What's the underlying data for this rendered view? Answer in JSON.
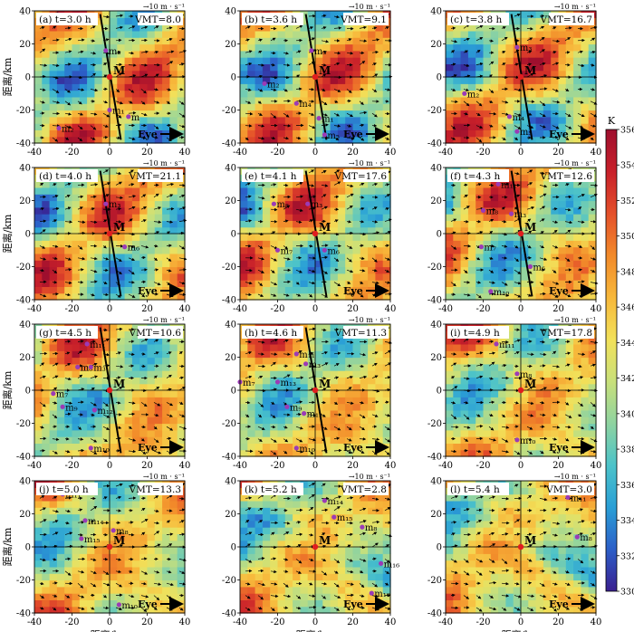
{
  "figure": {
    "xlabel": "距离/km",
    "ylabel": "距离/km",
    "vector_scale_label": "→10 m · s⁻¹",
    "eye_label": "Eye",
    "center_label": "M",
    "colorbar": {
      "unit": "K",
      "min": 330,
      "max": 356,
      "ticks": [
        "330",
        "332",
        "334",
        "336",
        "338",
        "340",
        "342",
        "344",
        "346",
        "348",
        "350",
        "352",
        "354",
        "356"
      ]
    },
    "colors": {
      "cmap": [
        "#3a1f8f",
        "#2c5fc8",
        "#2a9fd6",
        "#4cc3c9",
        "#8fd3a0",
        "#c9e07a",
        "#f2e15a",
        "#f7b83b",
        "#f28a2a",
        "#e4502a",
        "#c8202a",
        "#9e0f2e"
      ],
      "point": "#9b3bb6",
      "center": "#e01e1e"
    }
  },
  "chart_data": {
    "type": "heatmap",
    "description_axes": {
      "xlim": [
        -40,
        40
      ],
      "ylim": [
        -40,
        40
      ],
      "xticks": [
        -40,
        -20,
        0,
        20,
        40
      ],
      "yticks": [
        -40,
        -20,
        0,
        20,
        40
      ]
    },
    "panels": [
      {
        "tag": "(a)",
        "t": "t=3.0 h",
        "vmt": "VMT=8.0",
        "points": [
          {
            "name": "m₃",
            "x": -2,
            "y": 16
          },
          {
            "name": "m₁",
            "x": 0,
            "y": -20
          },
          {
            "name": "m₂",
            "x": -27,
            "y": -31
          },
          {
            "name": "m",
            "x": 10,
            "y": -24
          }
        ]
      },
      {
        "tag": "(b)",
        "t": "t=3.6 h",
        "vmt": "VMT=9.1",
        "points": [
          {
            "name": "m₃",
            "x": -2,
            "y": 16
          },
          {
            "name": "m₂",
            "x": -27,
            "y": -4
          },
          {
            "name": "m₄",
            "x": -10,
            "y": -16
          },
          {
            "name": "m₁",
            "x": 2,
            "y": -25
          },
          {
            "name": "m₅",
            "x": 5,
            "y": -35
          }
        ]
      },
      {
        "tag": "(c)",
        "t": "t=3.8 h",
        "vmt": "VMT=16.7",
        "points": [
          {
            "name": "m₃",
            "x": -2,
            "y": 18
          },
          {
            "name": "m₂",
            "x": -30,
            "y": -10
          },
          {
            "name": "m₄",
            "x": -6,
            "y": -24
          },
          {
            "name": "m₅",
            "x": -2,
            "y": -33
          }
        ]
      },
      {
        "tag": "(d)",
        "t": "t=4.0 h",
        "vmt": "VMT=21.1",
        "points": [
          {
            "name": "m₃",
            "x": -2,
            "y": 18
          },
          {
            "name": "m₆",
            "x": 8,
            "y": -8
          }
        ]
      },
      {
        "tag": "(e)",
        "t": "t=4.1 h",
        "vmt": "VMT=17.6",
        "points": [
          {
            "name": "m₈",
            "x": -22,
            "y": 18
          },
          {
            "name": "m₃",
            "x": -4,
            "y": 18
          },
          {
            "name": "m₇",
            "x": -20,
            "y": -10
          },
          {
            "name": "m₆",
            "x": 5,
            "y": -10
          }
        ]
      },
      {
        "tag": "(f)",
        "t": "t=4.3 h",
        "vmt": "VMT=12.6",
        "points": [
          {
            "name": "m₁₁",
            "x": -12,
            "y": 30
          },
          {
            "name": "m₈",
            "x": -20,
            "y": 14
          },
          {
            "name": "m₃",
            "x": -5,
            "y": 12
          },
          {
            "name": "m₇",
            "x": -21,
            "y": -8
          },
          {
            "name": "m₆",
            "x": 5,
            "y": -20
          },
          {
            "name": "m₁₀",
            "x": -16,
            "y": -35
          }
        ]
      },
      {
        "tag": "(g)",
        "t": "t=4.5 h",
        "vmt": "VMT=10.6",
        "points": [
          {
            "name": "m₁₁",
            "x": -12,
            "y": 28
          },
          {
            "name": "m₈",
            "x": -17,
            "y": 14
          },
          {
            "name": "m₃",
            "x": -10,
            "y": 14
          },
          {
            "name": "m₇",
            "x": -30,
            "y": -2
          },
          {
            "name": "m₉",
            "x": -25,
            "y": -10
          },
          {
            "name": "m₁₂",
            "x": -8,
            "y": -12
          },
          {
            "name": "m₁₀",
            "x": -10,
            "y": -35
          }
        ]
      },
      {
        "tag": "(h)",
        "t": "t=4.6 h",
        "vmt": "VMT=11.3",
        "points": [
          {
            "name": "m₁₁",
            "x": -10,
            "y": 22
          },
          {
            "name": "m₃",
            "x": -5,
            "y": 16
          },
          {
            "name": "m₇",
            "x": -40,
            "y": 5
          },
          {
            "name": "m₁₃",
            "x": -20,
            "y": 5
          },
          {
            "name": "m₉",
            "x": -15,
            "y": -10
          },
          {
            "name": "m₁₂",
            "x": -6,
            "y": -14
          },
          {
            "name": "m₁₀",
            "x": -10,
            "y": -35
          }
        ]
      },
      {
        "tag": "(i)",
        "t": "t=4.9 h",
        "vmt": "VMT=17.8",
        "points": [
          {
            "name": "m₁₁",
            "x": -13,
            "y": 28
          },
          {
            "name": "m₈",
            "x": -2,
            "y": 10
          },
          {
            "name": "m₁₀",
            "x": -2,
            "y": -30
          }
        ]
      },
      {
        "tag": "(j)",
        "t": "t=5.0 h",
        "vmt": "VMT=13.3",
        "points": [
          {
            "name": "m₁₁",
            "x": -25,
            "y": 32
          },
          {
            "name": "m₁₄",
            "x": -13,
            "y": 16
          },
          {
            "name": "m₈",
            "x": 2,
            "y": 10
          },
          {
            "name": "m₁₅",
            "x": -15,
            "y": 5
          },
          {
            "name": "m₁₀",
            "x": 5,
            "y": -35
          }
        ]
      },
      {
        "tag": "(k)",
        "t": "t=5.2 h",
        "vmt": "VMT=2.8",
        "points": [
          {
            "name": "m₁₄",
            "x": 5,
            "y": 28
          },
          {
            "name": "m₁₅",
            "x": 10,
            "y": 18
          },
          {
            "name": "m₈",
            "x": 25,
            "y": 12
          },
          {
            "name": "m₁₆",
            "x": 35,
            "y": -10
          },
          {
            "name": "m₁₀",
            "x": 30,
            "y": -28
          }
        ]
      },
      {
        "tag": "(l)",
        "t": "t=5.4 h",
        "vmt": "VMT=3.0",
        "points": [
          {
            "name": "m₁₁",
            "x": 25,
            "y": 30
          },
          {
            "name": "m₈",
            "x": 30,
            "y": 6
          }
        ]
      }
    ]
  }
}
